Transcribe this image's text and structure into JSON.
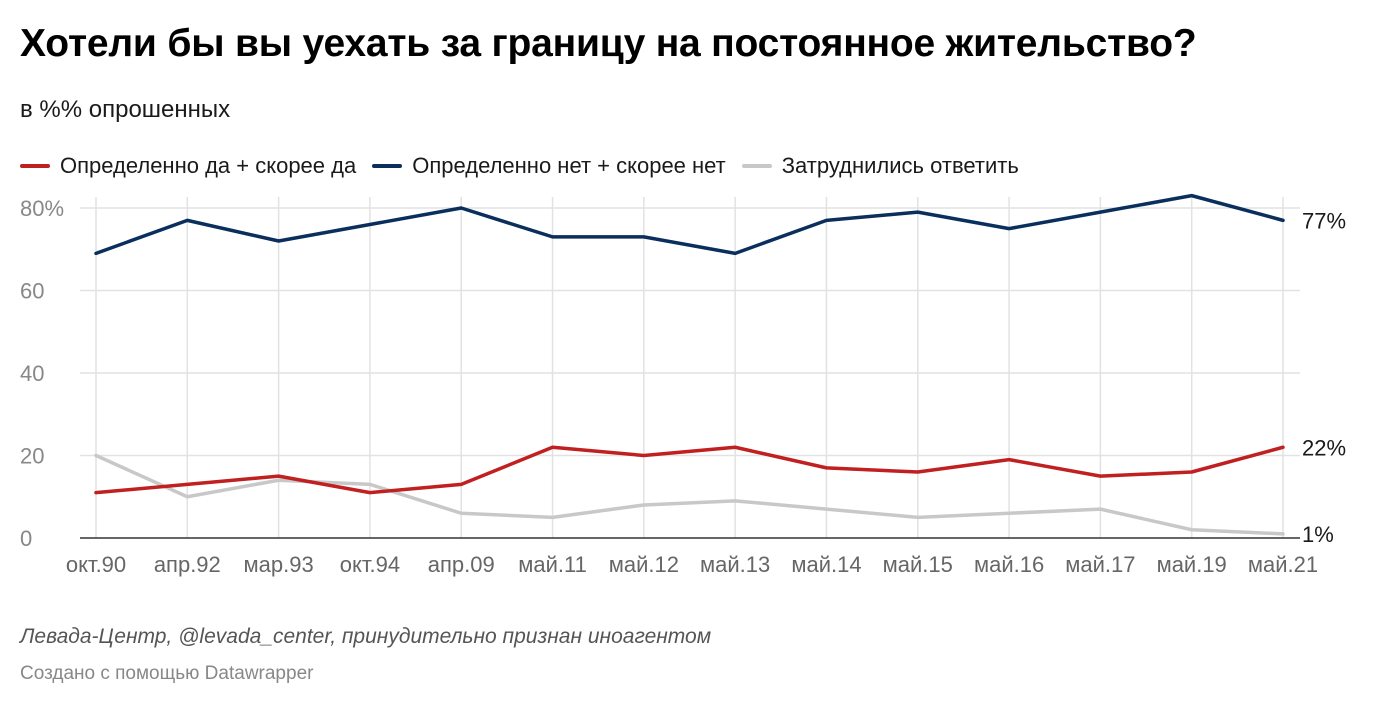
{
  "header": {
    "title": "Хотели бы вы уехать за границу на постоянное жительство?",
    "subtitle": "в %% опрошенных"
  },
  "footer": {
    "source": "Левада-Центр, @levada_center, принудительно признан иноагентом",
    "credit": "Создано с помощью Datawrapper"
  },
  "colors": {
    "yes": "#c0201f",
    "no": "#0a2f5c",
    "unsure": "#c8c8c8",
    "grid": "#e2e2e2",
    "axis_text": "#888888"
  },
  "chart_data": {
    "type": "line",
    "title": "Хотели бы вы уехать за границу на постоянное жительство?",
    "subtitle": "в %% опрошенных",
    "categories": [
      "окт.90",
      "апр.92",
      "мар.93",
      "окт.94",
      "апр.09",
      "май.11",
      "май.12",
      "май.13",
      "май.14",
      "май.15",
      "май.16",
      "май.17",
      "май.19",
      "май.21"
    ],
    "y_ticks": [
      "80%",
      "60",
      "40",
      "20",
      "0"
    ],
    "y_tick_values": [
      80,
      60,
      40,
      20,
      0
    ],
    "ylim": [
      0,
      80
    ],
    "grid": true,
    "legend_position": "top-left",
    "series": [
      {
        "name": "Определенно да + скорее да",
        "color": "#c0201f",
        "end_label": "22%",
        "values": [
          11,
          13,
          15,
          11,
          13,
          22,
          20,
          22,
          17,
          16,
          19,
          15,
          16,
          22
        ]
      },
      {
        "name": "Определенно нет + скорее нет",
        "color": "#0a2f5c",
        "end_label": "77%",
        "values": [
          69,
          77,
          72,
          76,
          80,
          73,
          73,
          69,
          77,
          79,
          75,
          79,
          83,
          77
        ]
      },
      {
        "name": "Затруднились ответить",
        "color": "#c8c8c8",
        "end_label": "1%",
        "values": [
          20,
          10,
          14,
          13,
          6,
          5,
          8,
          9,
          7,
          5,
          6,
          7,
          2,
          1
        ]
      }
    ]
  }
}
